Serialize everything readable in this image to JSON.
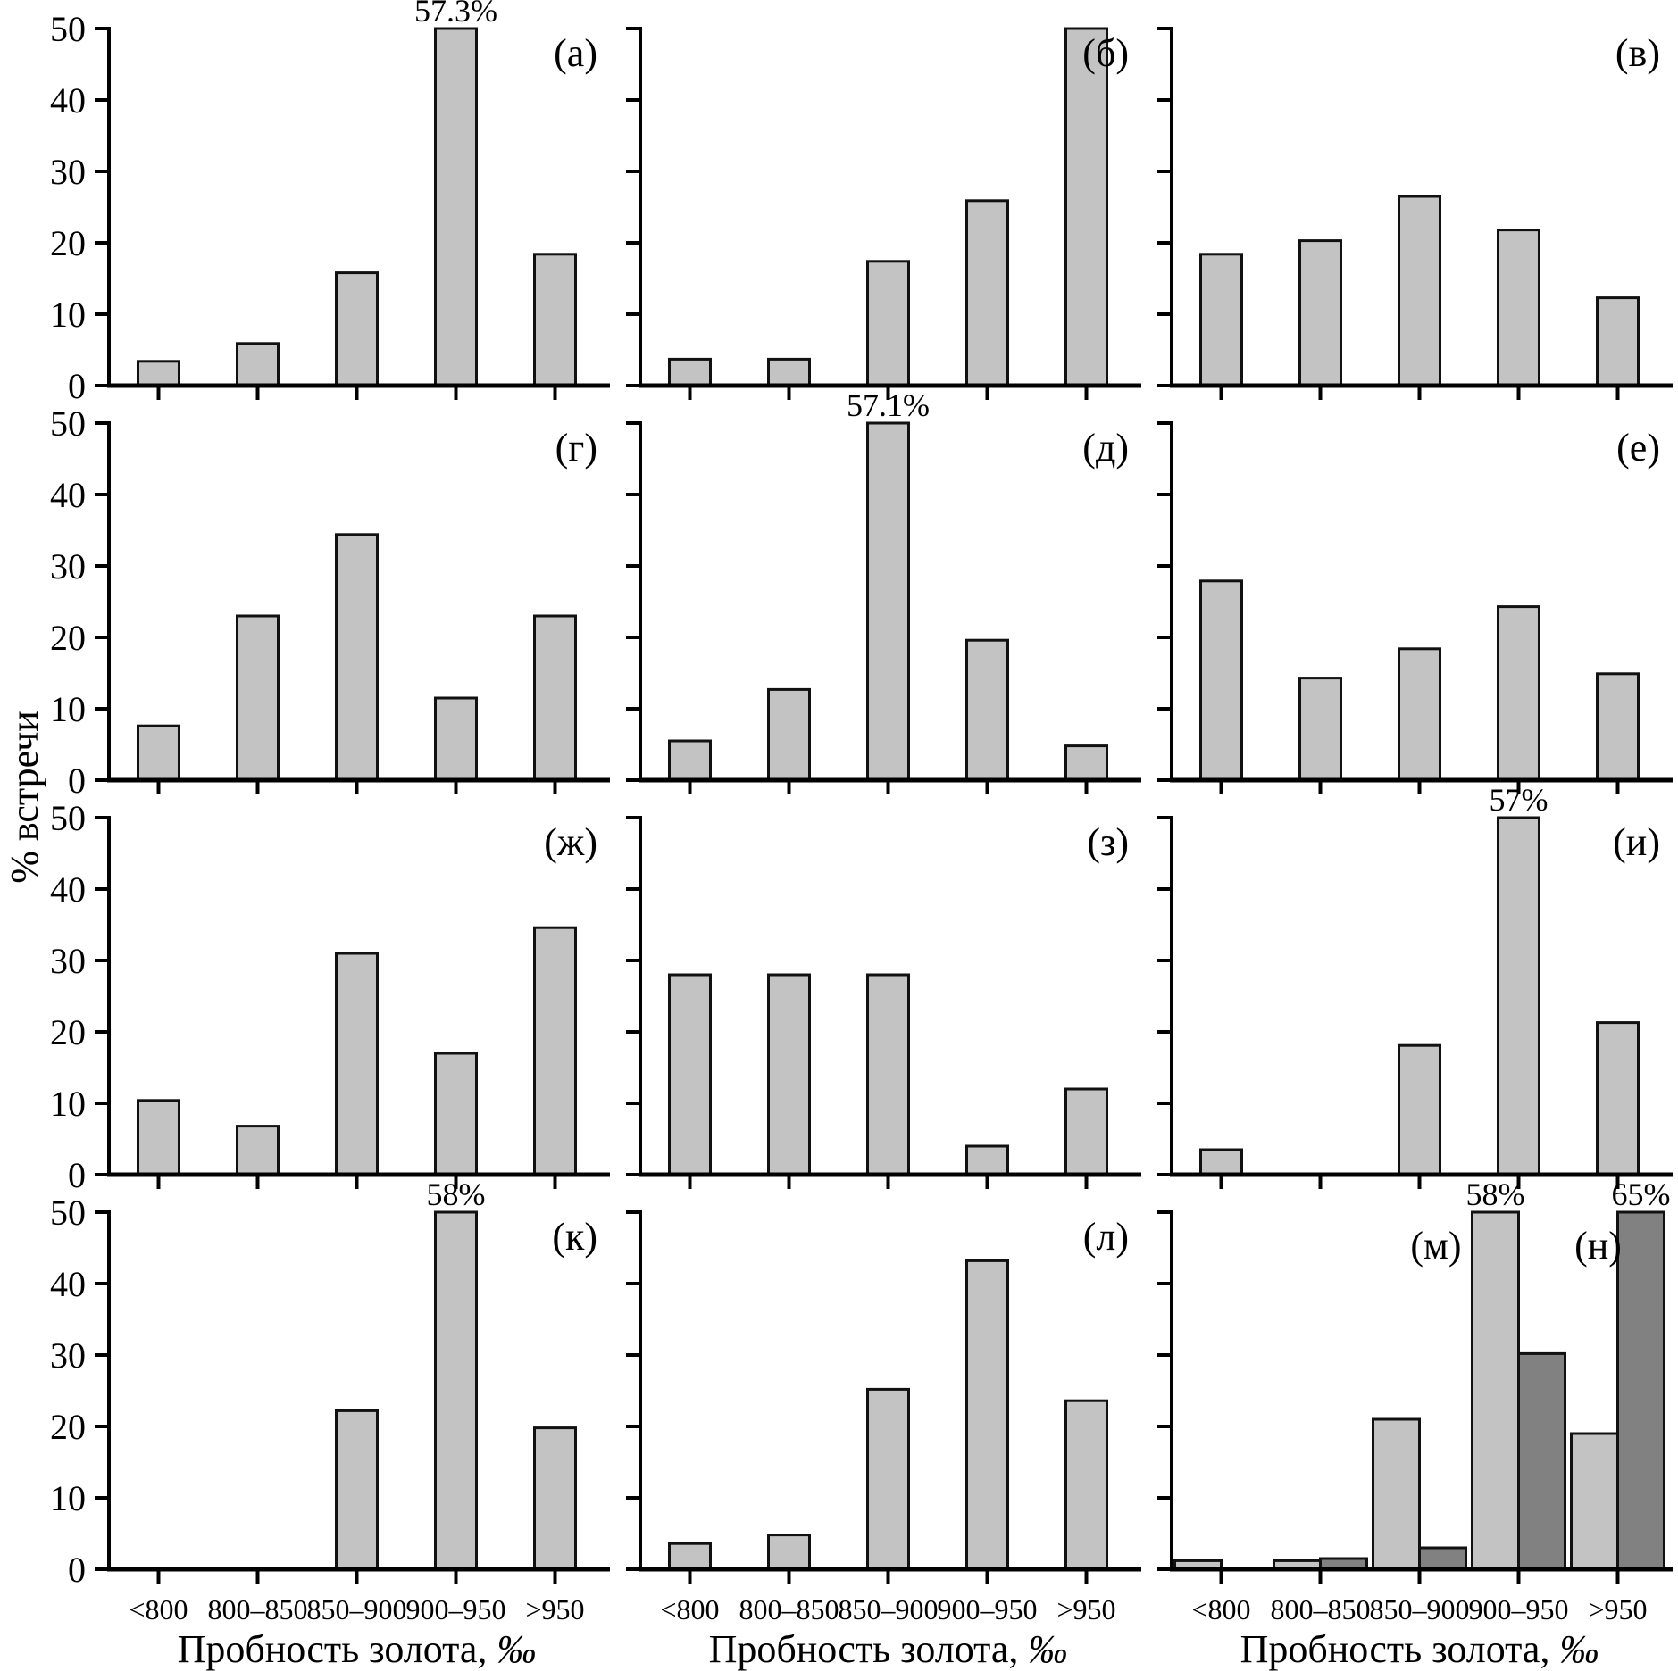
{
  "figure": {
    "ylabel": "% встречи",
    "xlabel": "Пробность золота, ‰"
  },
  "chart_data": {
    "type": "bar",
    "categories": [
      "<800",
      "800–850",
      "850–900",
      "900–950",
      ">950"
    ],
    "yticks": [
      0,
      10,
      20,
      30,
      40,
      50
    ],
    "ylim": [
      0,
      50
    ],
    "ylabel": "% встречи",
    "xlabel": "Пробность золота, ‰",
    "grid": false,
    "legend": "none",
    "colors": {
      "bar_light": "#c3c3c3",
      "bar_dark": "#818181",
      "stroke": "#111111"
    },
    "panels": [
      {
        "label": "(а)",
        "values": [
          3.4,
          5.9,
          15.8,
          50,
          18.4
        ],
        "annotations": [
          {
            "index": 3,
            "text": "57.3%"
          }
        ]
      },
      {
        "label": "(б)",
        "values": [
          3.7,
          3.7,
          17.4,
          25.9,
          50
        ],
        "annotations": []
      },
      {
        "label": "(в)",
        "values": [
          18.4,
          20.3,
          26.5,
          21.8,
          12.3
        ],
        "annotations": []
      },
      {
        "label": "(г)",
        "values": [
          7.6,
          23.0,
          34.4,
          11.5,
          23.0
        ],
        "annotations": []
      },
      {
        "label": "(д)",
        "values": [
          5.5,
          12.7,
          50,
          19.6,
          4.8
        ],
        "annotations": [
          {
            "index": 2,
            "text": "57.1%"
          }
        ]
      },
      {
        "label": "(е)",
        "values": [
          27.9,
          14.3,
          18.4,
          24.3,
          14.9
        ],
        "annotations": []
      },
      {
        "label": "(ж)",
        "values": [
          10.4,
          6.8,
          31.0,
          17.0,
          34.6
        ],
        "annotations": []
      },
      {
        "label": "(з)",
        "values": [
          28.0,
          28.0,
          28.0,
          4.0,
          12.0
        ],
        "annotations": []
      },
      {
        "label": "(и)",
        "values": [
          3.5,
          0,
          18.1,
          50,
          21.3
        ],
        "annotations": [
          {
            "index": 3,
            "text": "57%"
          }
        ]
      },
      {
        "label": "(к)",
        "values": [
          0,
          0,
          22.2,
          50,
          19.8
        ],
        "annotations": [
          {
            "index": 3,
            "text": "58%"
          }
        ]
      },
      {
        "label": "(л)",
        "values": [
          3.6,
          4.8,
          25.2,
          43.2,
          23.6
        ],
        "annotations": []
      },
      {
        "series": [
          {
            "label": "(м)",
            "color": "light",
            "values": [
              1.2,
              1.2,
              21.0,
              50,
              19.0
            ],
            "annotations": [
              {
                "index": 3,
                "text": "58%"
              }
            ]
          },
          {
            "label": "(н)",
            "color": "dark",
            "values": [
              0,
              1.5,
              3.0,
              30.2,
              50
            ],
            "annotations": [
              {
                "index": 4,
                "text": "65%"
              }
            ]
          }
        ]
      }
    ]
  }
}
